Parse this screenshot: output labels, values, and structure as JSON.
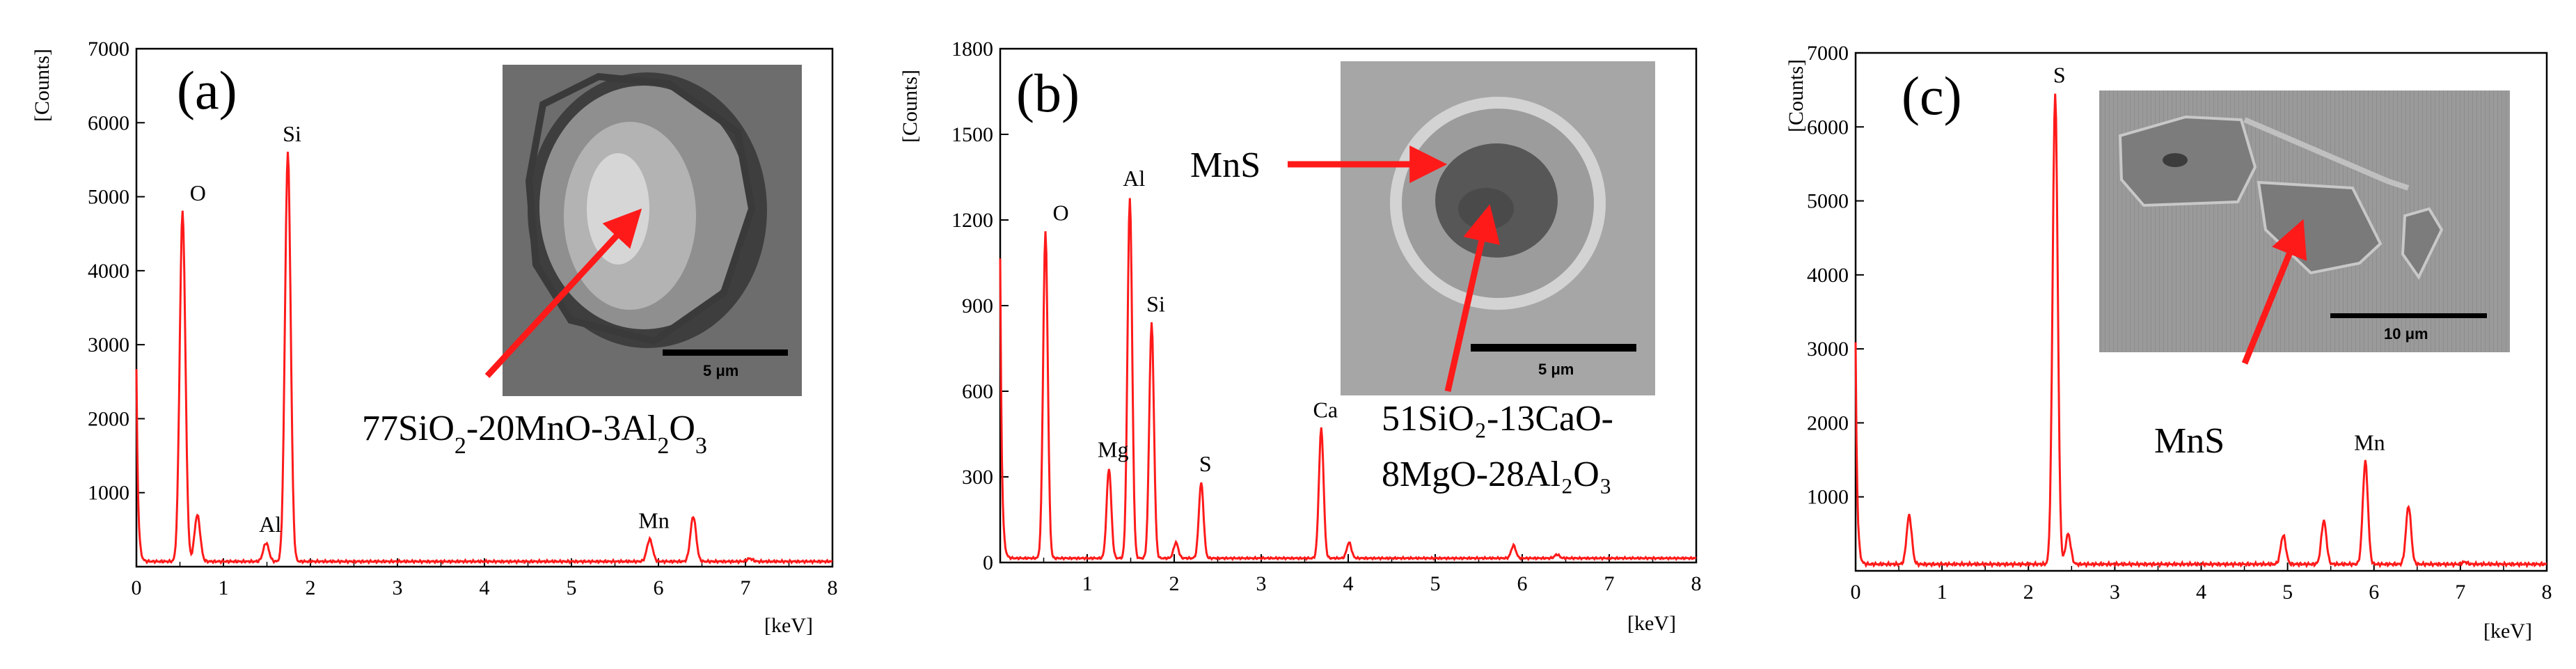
{
  "colors": {
    "spectrum": "#ff1a1a",
    "arrow": "#ff1a1a",
    "axis": "#000000",
    "background": "#ffffff"
  },
  "chart_data": [
    {
      "type": "line",
      "panel": "(a)",
      "title": "",
      "xlabel": "[keV]",
      "ylabel": "[Counts]",
      "xlim": [
        0,
        8
      ],
      "ylim": [
        0,
        7000
      ],
      "xticks": [
        0,
        1,
        2,
        3,
        4,
        5,
        6,
        7,
        8
      ],
      "yticks": [
        1000,
        2000,
        3000,
        4000,
        5000,
        6000,
        7000
      ],
      "peaks": [
        {
          "label": "O",
          "x": 0.53,
          "y": 4800
        },
        {
          "label": "Al",
          "x": 1.49,
          "y": 320
        },
        {
          "label": "Si",
          "x": 1.74,
          "y": 5600
        },
        {
          "label": "Mn",
          "x": 5.9,
          "y": 370
        }
      ],
      "minor_peaks": [
        {
          "x": 0.7,
          "y": 700
        },
        {
          "x": 6.4,
          "y": 680
        },
        {
          "x": 7.05,
          "y": 110
        }
      ],
      "baseline": 70,
      "zero_start": 2600,
      "annotation": {
        "pre": "77SiO",
        "s1": "2",
        "mid": "-20MnO-3Al",
        "s2": "2",
        "mid2": "O",
        "s3": "3"
      },
      "inset": {
        "scale_bar": "5 μm"
      }
    },
    {
      "type": "line",
      "panel": "(b)",
      "title": "",
      "xlabel": "[keV]",
      "ylabel": "[Counts]",
      "xlim": [
        0,
        8
      ],
      "ylim": [
        0,
        1800
      ],
      "xticks": [
        1,
        2,
        3,
        4,
        5,
        6,
        7,
        8
      ],
      "yticks": [
        0,
        300,
        600,
        900,
        1200,
        1500,
        1800
      ],
      "peaks": [
        {
          "label": "O",
          "x": 0.52,
          "y": 1160
        },
        {
          "label": "Mg",
          "x": 1.25,
          "y": 330
        },
        {
          "label": "Al",
          "x": 1.49,
          "y": 1280
        },
        {
          "label": "Si",
          "x": 1.74,
          "y": 840
        },
        {
          "label": "S",
          "x": 2.31,
          "y": 280
        },
        {
          "label": "Ca",
          "x": 3.69,
          "y": 470
        }
      ],
      "minor_peaks": [
        {
          "x": 2.02,
          "y": 70
        },
        {
          "x": 4.01,
          "y": 70
        },
        {
          "x": 5.9,
          "y": 60
        },
        {
          "x": 6.4,
          "y": 28
        }
      ],
      "baseline": 15,
      "zero_start": 1050,
      "annotation_line1": "51SiO₂-13CaO-",
      "annotation_line2": "8MgO-28Al₂O₃",
      "inset": {
        "arrow_label": "MnS",
        "scale_bar": "5 μm"
      }
    },
    {
      "type": "line",
      "panel": "(c)",
      "title": "",
      "xlabel": "[keV]",
      "ylabel": "[Counts]",
      "xlim": [
        0,
        8
      ],
      "ylim": [
        0,
        7000
      ],
      "xticks": [
        0,
        1,
        2,
        3,
        4,
        5,
        6,
        7,
        8
      ],
      "yticks": [
        1000,
        2000,
        3000,
        4000,
        5000,
        6000,
        7000
      ],
      "peaks": [
        {
          "label": "S",
          "x": 2.31,
          "y": 6450
        },
        {
          "label": "Mn",
          "x": 5.9,
          "y": 1480
        }
      ],
      "minor_peaks": [
        {
          "x": 0.62,
          "y": 750
        },
        {
          "x": 2.46,
          "y": 500
        },
        {
          "x": 4.95,
          "y": 480
        },
        {
          "x": 5.42,
          "y": 680
        },
        {
          "x": 6.4,
          "y": 880
        },
        {
          "x": 7.05,
          "y": 120
        }
      ],
      "baseline": 90,
      "zero_start": 3000,
      "annotation": "MnS",
      "inset": {
        "scale_bar": "10 μm"
      }
    }
  ]
}
